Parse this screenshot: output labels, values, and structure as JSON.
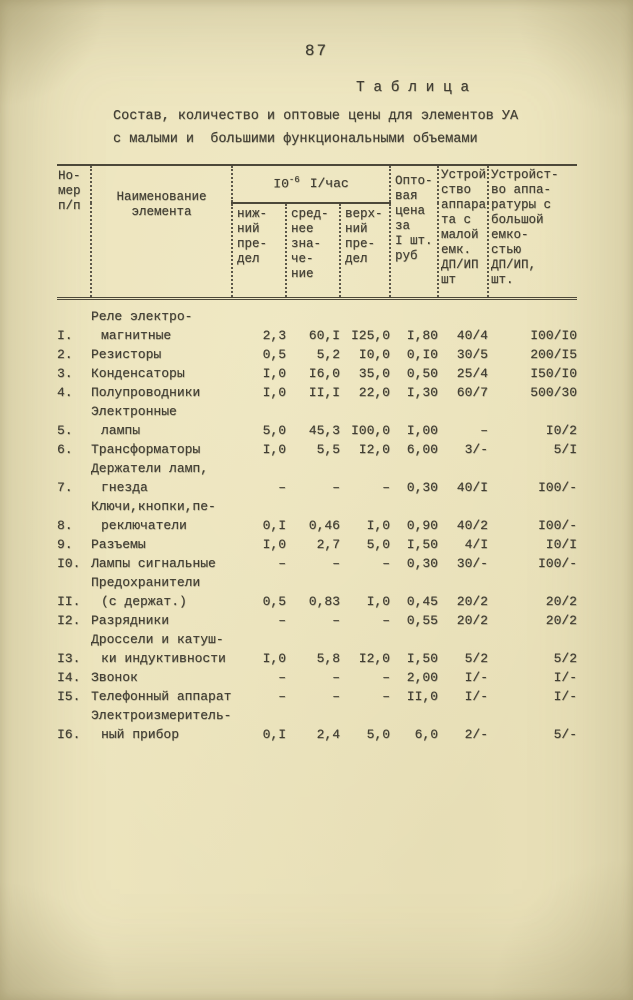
{
  "colors": {
    "paper": "#ece4bd",
    "ink": "#413e33",
    "rule": "#4c4839"
  },
  "page": {
    "number": "87"
  },
  "heading": {
    "label": "Т а б л и ц а"
  },
  "title": {
    "line1": "Состав, количество и оптовые цены для элементов УА",
    "line2": "с малыми и  большими функциональными объемами"
  },
  "table": {
    "col_group": {
      "base": "I0",
      "sup": "-6",
      "rest": "I/час"
    },
    "headers": {
      "num": "Но-\nмер\nп/п",
      "name": "Наименование\nэлемента",
      "lower": "ниж-\nний\nпре-\nдел",
      "mean": "сред-\nнее\nзна-\nче-\nние",
      "upper": "верх-\nний\nпре-\nдел",
      "price": "Опто-\nвая\nцена\nза\nI шт.\nруб",
      "small_cap": "Устрой\nство\nаппара\nта с\nмалой\nемк.\nДП/ИП\nшт",
      "large_cap": "Устройст-\nво аппа-\nратуры с\nбольшой\nемко-\nстью\nДП/ИП,\nшт."
    },
    "rows": [
      {
        "num": "I.",
        "name": [
          "Реле электро-",
          "магнитные"
        ],
        "vals": [
          "2,3",
          "60,I",
          "I25,0",
          "I,80",
          "40/4",
          "I00/I0"
        ]
      },
      {
        "num": "2.",
        "name": [
          "Резисторы"
        ],
        "vals": [
          "0,5",
          "5,2",
          "I0,0",
          "0,I0",
          "30/5",
          "200/I5"
        ]
      },
      {
        "num": "3.",
        "name": [
          "Конденсаторы"
        ],
        "vals": [
          "I,0",
          "I6,0",
          "35,0",
          "0,50",
          "25/4",
          "I50/I0"
        ]
      },
      {
        "num": "4.",
        "name": [
          "Полупроводники"
        ],
        "vals": [
          "I,0",
          "II,I",
          "22,0",
          "I,30",
          "60/7",
          "500/30"
        ]
      },
      {
        "num": "5.",
        "name": [
          "Электронные",
          "лампы"
        ],
        "vals": [
          "5,0",
          "45,3",
          "I00,0",
          "I,00",
          "–",
          "I0/2"
        ]
      },
      {
        "num": "6.",
        "name": [
          "Трансформаторы"
        ],
        "vals": [
          "I,0",
          "5,5",
          "I2,0",
          "6,00",
          "3/-",
          "5/I"
        ]
      },
      {
        "num": "7.",
        "name": [
          "Держатели ламп,",
          "гнезда"
        ],
        "vals": [
          "–",
          "–",
          "–",
          "0,30",
          "40/I",
          "I00/-"
        ]
      },
      {
        "num": "8.",
        "name": [
          "Ключи,кнопки,пе-",
          "реключатели"
        ],
        "vals": [
          "0,I",
          "0,46",
          "I,0",
          "0,90",
          "40/2",
          "I00/-"
        ]
      },
      {
        "num": "9.",
        "name": [
          "Разъемы"
        ],
        "vals": [
          "I,0",
          "2,7",
          "5,0",
          "I,50",
          "4/I",
          "I0/I"
        ]
      },
      {
        "num": "I0.",
        "name": [
          "Лампы сигнальные"
        ],
        "vals": [
          "–",
          "–",
          "–",
          "0,30",
          "30/-",
          "I00/-"
        ]
      },
      {
        "num": "II.",
        "name": [
          "Предохранители",
          "(с держат.)"
        ],
        "vals": [
          "0,5",
          "0,83",
          "I,0",
          "0,45",
          "20/2",
          "20/2"
        ]
      },
      {
        "num": "I2.",
        "name": [
          "Разрядники"
        ],
        "vals": [
          "–",
          "–",
          "–",
          "0,55",
          "20/2",
          "20/2"
        ]
      },
      {
        "num": "I3.",
        "name": [
          "Дроссели и катуш-",
          "ки индуктивности"
        ],
        "vals": [
          "I,0",
          "5,8",
          "I2,0",
          "I,50",
          "5/2",
          "5/2"
        ]
      },
      {
        "num": "I4.",
        "name": [
          "Звонок"
        ],
        "vals": [
          "–",
          "–",
          "–",
          "2,00",
          "I/-",
          "I/-"
        ]
      },
      {
        "num": "I5.",
        "name": [
          "Телефонный аппарат"
        ],
        "vals": [
          "–",
          "–",
          "–",
          "II,0",
          "I/-",
          "I/-"
        ]
      },
      {
        "num": "I6.",
        "name": [
          "Электроизмеритель-",
          "ный прибор"
        ],
        "vals": [
          "0,I",
          "2,4",
          "5,0",
          "6,0",
          "2/-",
          "5/-"
        ]
      }
    ]
  }
}
